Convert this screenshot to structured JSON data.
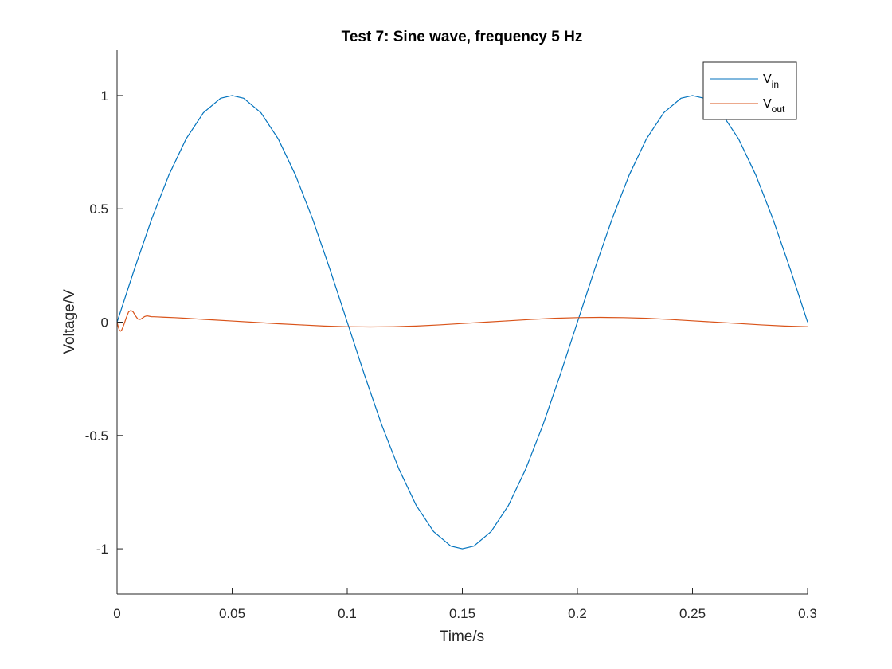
{
  "chart_data": {
    "type": "line",
    "title": "Test 7: Sine wave, frequency 5 Hz",
    "xlabel": "Time/s",
    "ylabel": "Voltage/V",
    "xlim": [
      0,
      0.3
    ],
    "ylim": [
      -1.2,
      1.2
    ],
    "xticks": [
      0,
      0.05,
      0.1,
      0.15,
      0.2,
      0.25,
      0.3
    ],
    "xtick_labels": [
      "0",
      "0.05",
      "0.1",
      "0.15",
      "0.2",
      "0.25",
      "0.3"
    ],
    "yticks": [
      -1,
      -0.5,
      0,
      0.5,
      1
    ],
    "ytick_labels": [
      "-1",
      "-0.5",
      "0",
      "0.5",
      "1"
    ],
    "grid": false,
    "legend_location": "top-right",
    "series": [
      {
        "name": "V_in",
        "legend_main": "V",
        "legend_sub": "in",
        "color": "#0072BD",
        "x": [
          0,
          0.0075,
          0.015,
          0.0225,
          0.03,
          0.0375,
          0.045,
          0.05,
          0.055,
          0.0625,
          0.07,
          0.0775,
          0.085,
          0.0925,
          0.1,
          0.1075,
          0.115,
          0.1225,
          0.13,
          0.1375,
          0.145,
          0.15,
          0.155,
          0.1625,
          0.17,
          0.1775,
          0.185,
          0.1925,
          0.2,
          0.2075,
          0.215,
          0.2225,
          0.23,
          0.2375,
          0.245,
          0.25,
          0.255,
          0.2625,
          0.27,
          0.2775,
          0.285,
          0.2925,
          0.3
        ],
        "y": [
          0,
          0.233,
          0.454,
          0.649,
          0.809,
          0.924,
          0.988,
          1.0,
          0.988,
          0.924,
          0.809,
          0.649,
          0.454,
          0.233,
          0,
          -0.233,
          -0.454,
          -0.649,
          -0.809,
          -0.924,
          -0.988,
          -1.0,
          -0.988,
          -0.924,
          -0.809,
          -0.649,
          -0.454,
          -0.233,
          0,
          0.233,
          0.454,
          0.649,
          0.809,
          0.924,
          0.988,
          1.0,
          0.988,
          0.924,
          0.809,
          0.649,
          0.454,
          0.233,
          0
        ]
      },
      {
        "name": "V_out",
        "legend_main": "V",
        "legend_sub": "out",
        "color": "#D95319",
        "x": [
          0,
          0.0005,
          0.001,
          0.0015,
          0.002,
          0.003,
          0.004,
          0.005,
          0.006,
          0.007,
          0.008,
          0.009,
          0.01,
          0.011,
          0.012,
          0.013,
          0.014,
          0.015,
          0.016,
          0.018,
          0.02,
          0.025,
          0.03,
          0.04,
          0.05,
          0.06,
          0.07,
          0.08,
          0.09,
          0.1,
          0.11,
          0.12,
          0.13,
          0.14,
          0.15,
          0.16,
          0.17,
          0.18,
          0.19,
          0.2,
          0.21,
          0.22,
          0.23,
          0.24,
          0.25,
          0.26,
          0.27,
          0.28,
          0.29,
          0.3
        ],
        "y": [
          0,
          -0.02,
          -0.035,
          -0.04,
          -0.035,
          -0.01,
          0.02,
          0.045,
          0.052,
          0.045,
          0.028,
          0.014,
          0.012,
          0.018,
          0.025,
          0.028,
          0.026,
          0.024,
          0.024,
          0.023,
          0.022,
          0.02,
          0.017,
          0.011,
          0.005,
          -0.001,
          -0.007,
          -0.012,
          -0.017,
          -0.02,
          -0.021,
          -0.02,
          -0.017,
          -0.012,
          -0.006,
          0.0,
          0.006,
          0.012,
          0.017,
          0.02,
          0.021,
          0.02,
          0.017,
          0.012,
          0.006,
          0.0,
          -0.006,
          -0.012,
          -0.017,
          -0.02
        ]
      }
    ]
  }
}
